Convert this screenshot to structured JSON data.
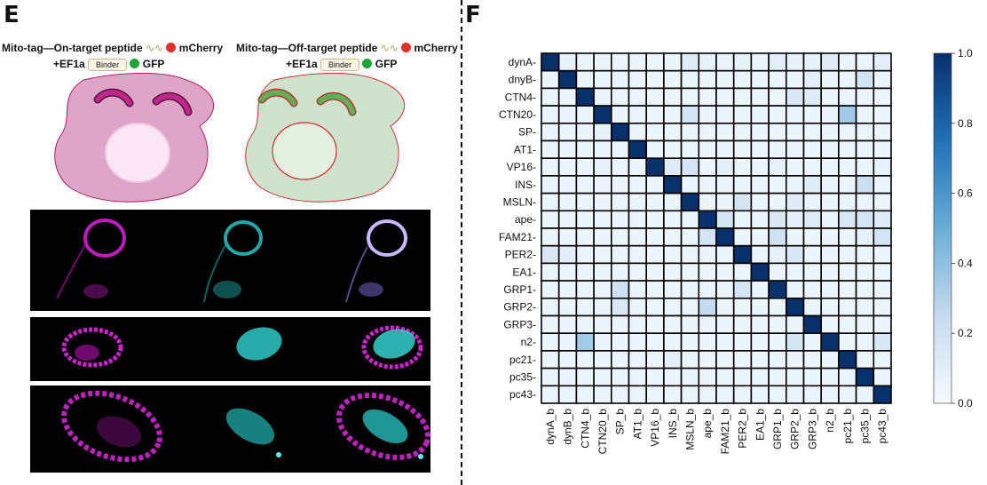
{
  "panel_e": {
    "letter": "E",
    "on_target": {
      "line1_prefix": "Mito-tag—On-target peptide",
      "line1_suffix": "mCherry",
      "line2_prefix": "+EF1a",
      "binder": "Binder",
      "line2_suffix": "GFP"
    },
    "off_target": {
      "line1_prefix": "Mito-tag—Off-target peptide",
      "line1_suffix": "mCherry",
      "line2_prefix": "+EF1a",
      "binder": "Binder",
      "line2_suffix": "GFP"
    },
    "colors": {
      "on_cell": "#dda6c8",
      "off_cell": "#cfe3cc",
      "mito_on": "#c0278a",
      "mito_off": "#6aab55",
      "mcherry": "#e0302e",
      "gfp": "#1aa53a"
    }
  },
  "panel_f": {
    "letter": "F",
    "chart_data": {
      "type": "heatmap",
      "row_labels": [
        "dynA",
        "dnyB",
        "CTN4",
        "CTN20",
        "SP",
        "AT1",
        "VP16",
        "INS",
        "MSLN",
        "ape",
        "FAM21",
        "PER2",
        "EA1",
        "GRP1",
        "GRP2",
        "GRP3",
        "n2",
        "pc21",
        "pc35",
        "pc43"
      ],
      "col_labels": [
        "dynA_b",
        "dynB_b",
        "CTN4_b",
        "CTN20_b",
        "SP_b",
        "AT1_b",
        "VP16_b",
        "INS_b",
        "MSLN_b",
        "ape_b",
        "FAM21_b",
        "PER2_b",
        "EA1_b",
        "GRP1_b",
        "GRP2_b",
        "GRP3_b",
        "n2_b",
        "pc21_b",
        "pc35_b",
        "pc43_b"
      ],
      "values": [
        [
          1.0,
          0.08,
          0.05,
          0.05,
          0.05,
          0.05,
          0.05,
          0.05,
          0.12,
          0.08,
          0.05,
          0.08,
          0.05,
          0.1,
          0.08,
          0.08,
          0.12,
          0.05,
          0.05,
          0.1
        ],
        [
          0.05,
          1.0,
          0.05,
          0.05,
          0.05,
          0.05,
          0.05,
          0.05,
          0.05,
          0.05,
          0.05,
          0.05,
          0.05,
          0.05,
          0.05,
          0.1,
          0.05,
          0.05,
          0.18,
          0.05
        ],
        [
          0.05,
          0.05,
          1.0,
          0.05,
          0.05,
          0.05,
          0.05,
          0.05,
          0.05,
          0.05,
          0.05,
          0.05,
          0.05,
          0.05,
          0.15,
          0.12,
          0.05,
          0.05,
          0.05,
          0.05
        ],
        [
          0.05,
          0.05,
          0.05,
          1.0,
          0.05,
          0.05,
          0.05,
          0.05,
          0.18,
          0.05,
          0.05,
          0.05,
          0.05,
          0.05,
          0.05,
          0.05,
          0.05,
          0.35,
          0.05,
          0.05
        ],
        [
          0.05,
          0.05,
          0.05,
          0.08,
          1.0,
          0.05,
          0.05,
          0.05,
          0.05,
          0.05,
          0.05,
          0.05,
          0.05,
          0.05,
          0.05,
          0.05,
          0.05,
          0.05,
          0.05,
          0.05
        ],
        [
          0.05,
          0.05,
          0.05,
          0.05,
          0.05,
          1.0,
          0.05,
          0.05,
          0.05,
          0.05,
          0.05,
          0.05,
          0.05,
          0.05,
          0.05,
          0.05,
          0.05,
          0.05,
          0.05,
          0.05
        ],
        [
          0.05,
          0.05,
          0.05,
          0.08,
          0.05,
          0.05,
          1.0,
          0.12,
          0.18,
          0.05,
          0.1,
          0.05,
          0.05,
          0.08,
          0.05,
          0.05,
          0.05,
          0.05,
          0.05,
          0.08
        ],
        [
          0.05,
          0.05,
          0.05,
          0.05,
          0.05,
          0.05,
          0.05,
          1.0,
          0.05,
          0.05,
          0.05,
          0.05,
          0.05,
          0.05,
          0.05,
          0.12,
          0.05,
          0.05,
          0.22,
          0.05
        ],
        [
          0.05,
          0.05,
          0.05,
          0.05,
          0.05,
          0.05,
          0.05,
          0.05,
          1.0,
          0.05,
          0.05,
          0.18,
          0.05,
          0.05,
          0.12,
          0.05,
          0.05,
          0.05,
          0.05,
          0.05
        ],
        [
          0.05,
          0.05,
          0.05,
          0.05,
          0.05,
          0.05,
          0.05,
          0.05,
          0.05,
          1.0,
          0.18,
          0.05,
          0.05,
          0.15,
          0.1,
          0.12,
          0.05,
          0.15,
          0.18,
          0.12
        ],
        [
          0.05,
          0.05,
          0.05,
          0.05,
          0.05,
          0.05,
          0.05,
          0.05,
          0.05,
          0.18,
          1.0,
          0.05,
          0.05,
          0.2,
          0.05,
          0.05,
          0.05,
          0.05,
          0.08,
          0.18
        ],
        [
          0.15,
          0.1,
          0.05,
          0.05,
          0.05,
          0.05,
          0.05,
          0.05,
          0.05,
          0.05,
          0.05,
          1.0,
          0.05,
          0.08,
          0.15,
          0.05,
          0.05,
          0.05,
          0.05,
          0.05
        ],
        [
          0.05,
          0.05,
          0.05,
          0.05,
          0.05,
          0.05,
          0.05,
          0.05,
          0.05,
          0.05,
          0.05,
          0.05,
          1.0,
          0.05,
          0.05,
          0.05,
          0.05,
          0.05,
          0.05,
          0.05
        ],
        [
          0.05,
          0.05,
          0.05,
          0.05,
          0.2,
          0.05,
          0.05,
          0.05,
          0.05,
          0.05,
          0.05,
          0.18,
          0.05,
          1.0,
          0.05,
          0.05,
          0.05,
          0.05,
          0.05,
          0.05
        ],
        [
          0.05,
          0.05,
          0.05,
          0.05,
          0.15,
          0.05,
          0.05,
          0.05,
          0.05,
          0.25,
          0.05,
          0.05,
          0.05,
          0.05,
          1.0,
          0.05,
          0.05,
          0.05,
          0.05,
          0.05
        ],
        [
          0.05,
          0.05,
          0.05,
          0.05,
          0.05,
          0.05,
          0.05,
          0.05,
          0.05,
          0.05,
          0.05,
          0.05,
          0.05,
          0.05,
          0.05,
          1.0,
          0.05,
          0.05,
          0.05,
          0.05
        ],
        [
          0.05,
          0.05,
          0.35,
          0.05,
          0.05,
          0.05,
          0.05,
          0.05,
          0.05,
          0.05,
          0.05,
          0.05,
          0.05,
          0.05,
          0.18,
          0.05,
          1.0,
          0.05,
          0.05,
          0.15
        ],
        [
          0.05,
          0.05,
          0.05,
          0.05,
          0.05,
          0.05,
          0.05,
          0.1,
          0.05,
          0.05,
          0.05,
          0.05,
          0.05,
          0.05,
          0.05,
          0.05,
          0.05,
          1.0,
          0.05,
          0.05
        ],
        [
          0.05,
          0.05,
          0.05,
          0.05,
          0.05,
          0.05,
          0.05,
          0.05,
          0.05,
          0.05,
          0.05,
          0.05,
          0.05,
          0.05,
          0.05,
          0.05,
          0.05,
          0.05,
          1.0,
          0.05
        ],
        [
          0.05,
          0.05,
          0.05,
          0.05,
          0.05,
          0.05,
          0.05,
          0.05,
          0.05,
          0.05,
          0.05,
          0.05,
          0.05,
          0.05,
          0.05,
          0.05,
          0.05,
          0.05,
          0.05,
          1.0
        ]
      ],
      "vmin": 0.0,
      "vmax": 1.0,
      "colorbar_ticks": [
        "0.0",
        "0.2",
        "0.4",
        "0.6",
        "0.8",
        "1.0"
      ],
      "colormap": [
        "#f7fbff",
        "#c6dbef",
        "#6baed6",
        "#2171b5",
        "#08306b"
      ],
      "title": "",
      "xlabel": "",
      "ylabel": ""
    }
  }
}
